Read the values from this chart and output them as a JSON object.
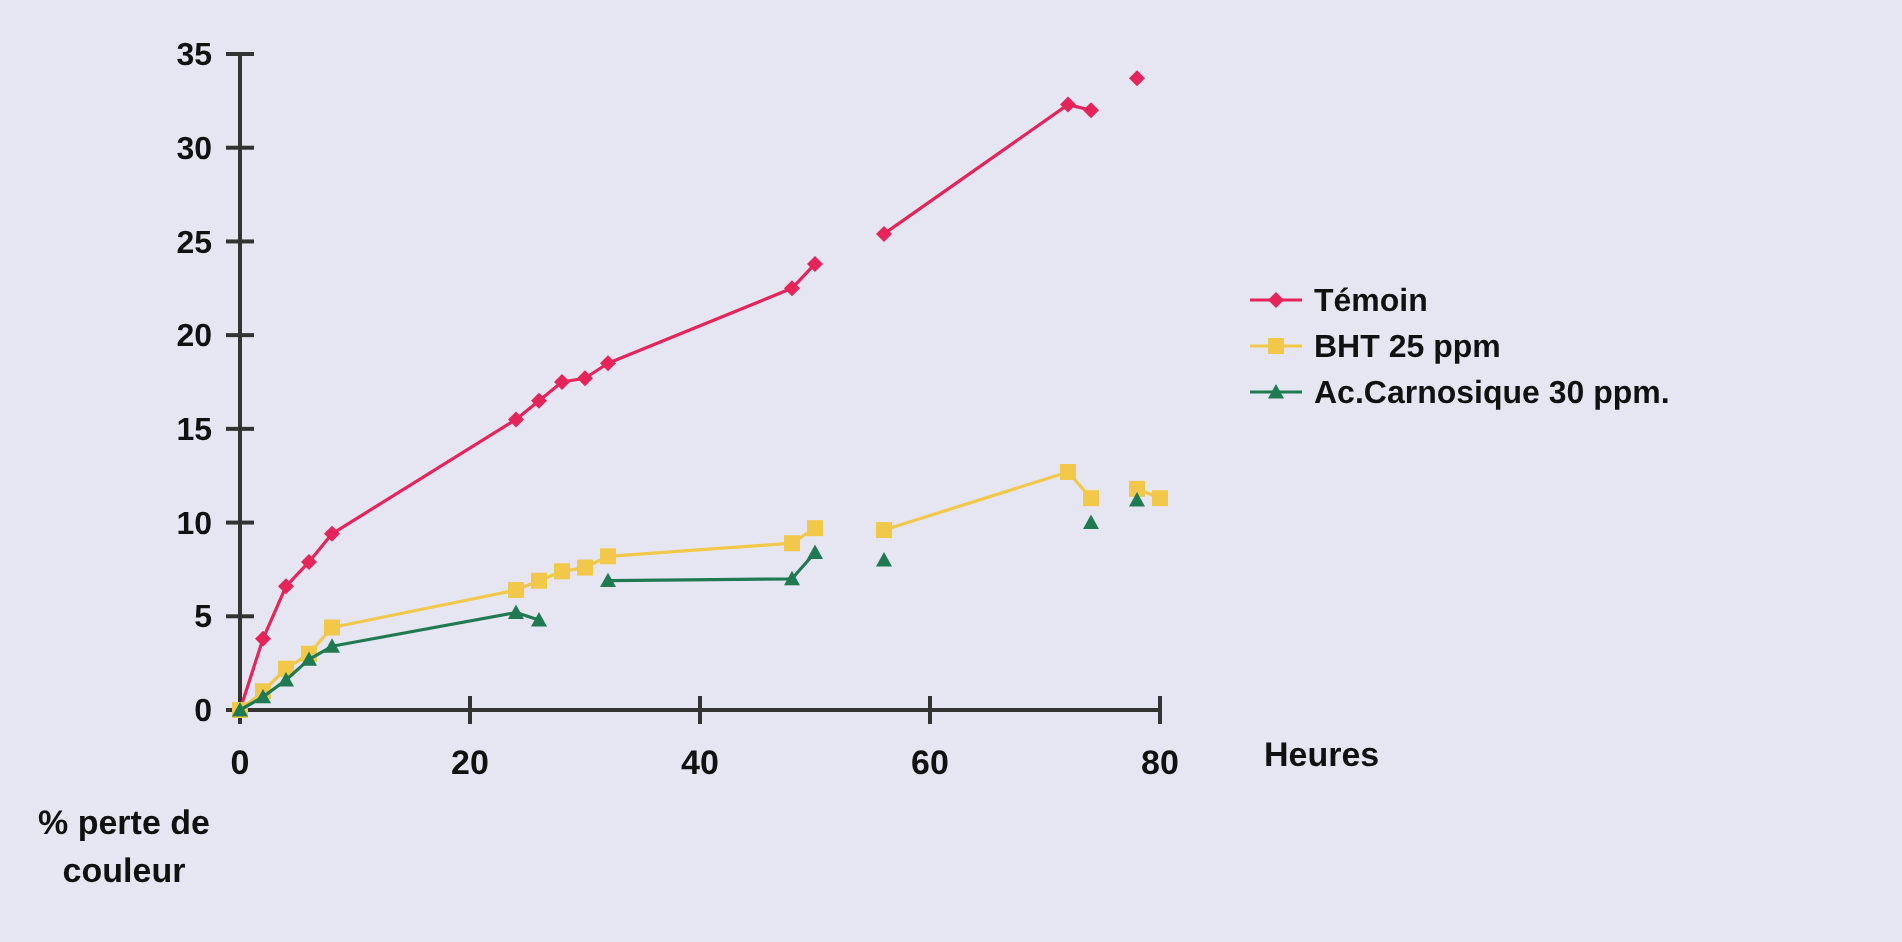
{
  "chart_data": {
    "type": "line",
    "xlabel": "Heures",
    "ylabel": "% perte de couleur",
    "xlim": [
      0,
      80
    ],
    "ylim": [
      0,
      35
    ],
    "xticks": [
      0,
      20,
      40,
      60,
      80
    ],
    "yticks": [
      0,
      5,
      10,
      15,
      20,
      25,
      30,
      35
    ],
    "grid": false,
    "legend": "right",
    "line_style": "solid",
    "series": [
      {
        "name": "Témoin",
        "color": "#e5245a",
        "marker": "diamond",
        "x": [
          0,
          2,
          4,
          6,
          8,
          24,
          26,
          28,
          30,
          32,
          48,
          50,
          53,
          56,
          72,
          74,
          76,
          78
        ],
        "values": [
          0,
          3.8,
          6.6,
          7.9,
          9.4,
          15.5,
          16.5,
          17.5,
          17.7,
          18.5,
          22.5,
          23.8,
          null,
          25.4,
          32.3,
          32.0,
          null,
          33.7
        ]
      },
      {
        "name": "BHT 25 ppm",
        "color": "#f2c84b",
        "marker": "square",
        "x": [
          0,
          2,
          4,
          6,
          8,
          24,
          26,
          28,
          30,
          32,
          48,
          50,
          53,
          56,
          72,
          74,
          76,
          78,
          80
        ],
        "values": [
          0,
          1.0,
          2.2,
          3.0,
          4.4,
          6.4,
          6.9,
          7.4,
          7.6,
          8.2,
          8.9,
          9.7,
          null,
          9.6,
          12.7,
          11.3,
          null,
          11.8,
          11.3
        ]
      },
      {
        "name": "Ac.Carnosique 30 ppm.",
        "color": "#1f7a52",
        "marker": "triangle",
        "x": [
          0,
          2,
          4,
          6,
          8,
          24,
          26,
          29,
          32,
          48,
          50,
          53,
          56,
          65,
          74,
          76,
          78
        ],
        "values": [
          0,
          0.7,
          1.6,
          2.7,
          3.4,
          5.2,
          4.8,
          null,
          6.9,
          7.0,
          8.4,
          null,
          8.0,
          null,
          10.0,
          null,
          11.2
        ]
      }
    ]
  }
}
